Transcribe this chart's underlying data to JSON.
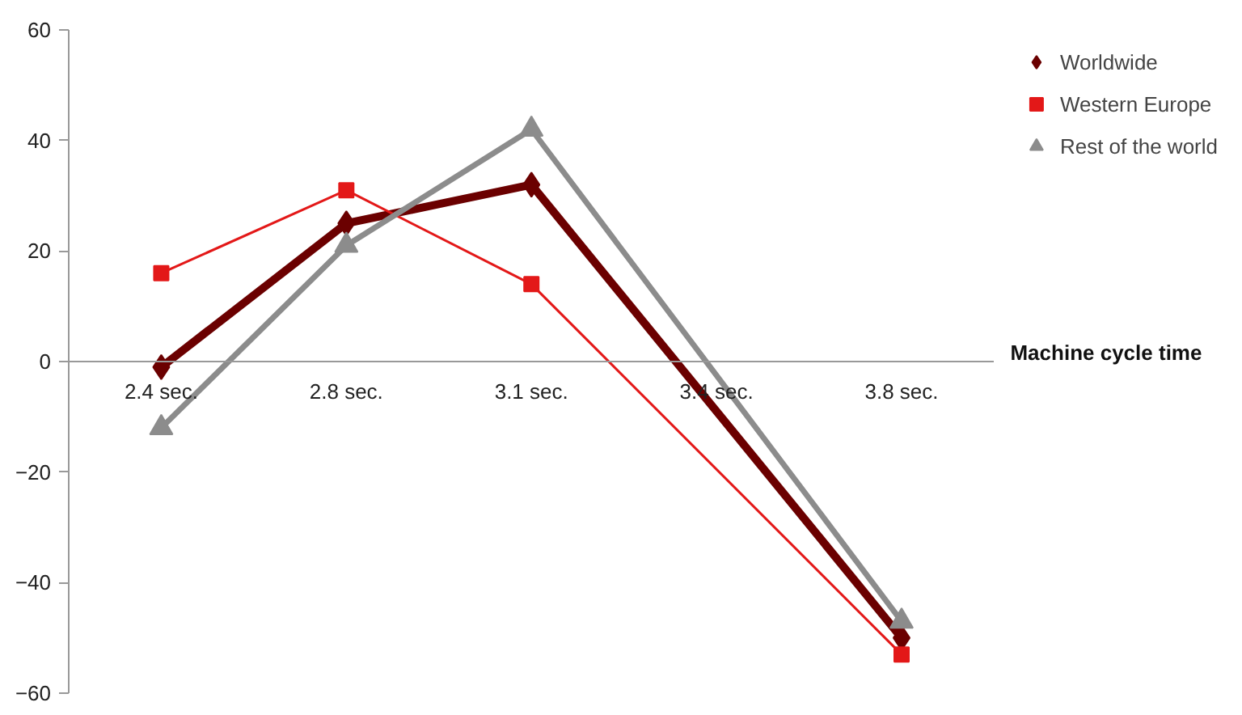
{
  "chart_data": {
    "type": "line",
    "xlabel": "Machine cycle time",
    "categories": [
      "2.4 sec.",
      "2.8 sec.",
      "3.1 sec.",
      "3.4 sec.",
      "3.8 sec."
    ],
    "series": [
      {
        "name": "Worldwide",
        "color": "#6b0000",
        "marker": "diamond",
        "values": [
          -1,
          25,
          32,
          null,
          -50
        ]
      },
      {
        "name": "Western Europe",
        "color": "#e31818",
        "marker": "square",
        "values": [
          16,
          31,
          14,
          null,
          -53
        ]
      },
      {
        "name": "Rest of the world",
        "color": "#8c8c8c",
        "marker": "triangle",
        "values": [
          -12,
          21,
          42,
          null,
          -47
        ]
      }
    ],
    "ylim": [
      -60,
      60
    ],
    "yticks": [
      -60,
      -40,
      -20,
      0,
      20,
      40,
      60
    ],
    "grid": false,
    "legend": "top right"
  }
}
